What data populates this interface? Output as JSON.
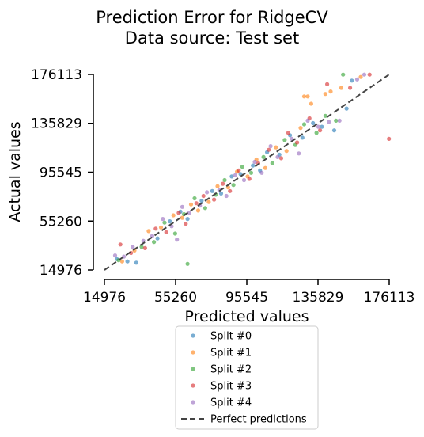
{
  "chart_data": {
    "type": "scatter",
    "title": "Prediction Error for RidgeCV",
    "subtitle": "Data source: Test set",
    "xlabel": "Predicted values",
    "ylabel": "Actual values",
    "xlim": [
      14976,
      176113
    ],
    "ylim": [
      14976,
      176113
    ],
    "xticks": [
      "14976",
      "55260",
      "95545",
      "135829",
      "176113"
    ],
    "yticks": [
      "14976",
      "55260",
      "95545",
      "135829",
      "176113"
    ],
    "tick_values": [
      14976,
      55260,
      95545,
      135829,
      176113
    ],
    "grid": false,
    "legend_position": "below",
    "reference_line": {
      "name": "Perfect predictions",
      "style": "dashed",
      "color": "#444444",
      "from": [
        14976,
        14976
      ],
      "to": [
        176113,
        176113
      ]
    },
    "series": [
      {
        "name": "Split #0",
        "color": "#1f77b4",
        "points": [
          [
            22000,
            24000
          ],
          [
            28000,
            22000
          ],
          [
            33000,
            21000
          ],
          [
            45000,
            41000
          ],
          [
            52000,
            55000
          ],
          [
            58000,
            63000
          ],
          [
            62000,
            57000
          ],
          [
            70000,
            72000
          ],
          [
            76000,
            80000
          ],
          [
            81000,
            78000
          ],
          [
            87000,
            92000
          ],
          [
            92000,
            94000
          ],
          [
            99000,
            101000
          ],
          [
            103000,
            97000
          ],
          [
            107000,
            112000
          ],
          [
            114000,
            110000
          ],
          [
            120000,
            126000
          ],
          [
            127000,
            124000
          ],
          [
            133000,
            136000
          ],
          [
            138000,
            133000
          ],
          [
            145000,
            130000
          ],
          [
            152000,
            148000
          ],
          [
            155000,
            171000
          ]
        ]
      },
      {
        "name": "Split #1",
        "color": "#ff7f0e",
        "points": [
          [
            25000,
            22000
          ],
          [
            32000,
            31000
          ],
          [
            40000,
            47000
          ],
          [
            47000,
            50000
          ],
          [
            54000,
            60000
          ],
          [
            59000,
            58000
          ],
          [
            64000,
            69000
          ],
          [
            68000,
            64000
          ],
          [
            74000,
            71000
          ],
          [
            79000,
            84000
          ],
          [
            85000,
            83000
          ],
          [
            90000,
            96000
          ],
          [
            96000,
            92000
          ],
          [
            101000,
            106000
          ],
          [
            106000,
            99000
          ],
          [
            112000,
            116000
          ],
          [
            118000,
            113000
          ],
          [
            126000,
            132000
          ],
          [
            128000,
            158000
          ],
          [
            130000,
            158000
          ],
          [
            132000,
            152000
          ],
          [
            140000,
            160000
          ],
          [
            143000,
            162000
          ],
          [
            149000,
            165000
          ],
          [
            160000,
            174000
          ]
        ]
      },
      {
        "name": "Split #2",
        "color": "#2ca02c",
        "points": [
          [
            23000,
            23000
          ],
          [
            36000,
            34000
          ],
          [
            43000,
            38000
          ],
          [
            49000,
            54000
          ],
          [
            55000,
            45000
          ],
          [
            60000,
            61000
          ],
          [
            62000,
            20000
          ],
          [
            66000,
            74000
          ],
          [
            72000,
            66000
          ],
          [
            78000,
            77000
          ],
          [
            83000,
            89000
          ],
          [
            88000,
            85000
          ],
          [
            93000,
            100000
          ],
          [
            98000,
            95000
          ],
          [
            105000,
            108000
          ],
          [
            110000,
            103000
          ],
          [
            117000,
            122000
          ],
          [
            123000,
            118000
          ],
          [
            128000,
            135000
          ],
          [
            135000,
            128000
          ],
          [
            140000,
            142000
          ],
          [
            146000,
            138000
          ],
          [
            150000,
            176000
          ]
        ]
      },
      {
        "name": "Split #3",
        "color": "#d62728",
        "points": [
          [
            24000,
            36000
          ],
          [
            30000,
            29000
          ],
          [
            38000,
            33000
          ],
          [
            44000,
            49000
          ],
          [
            50000,
            46000
          ],
          [
            57000,
            62000
          ],
          [
            61000,
            53000
          ],
          [
            67000,
            70000
          ],
          [
            71000,
            76000
          ],
          [
            77000,
            73000
          ],
          [
            82000,
            86000
          ],
          [
            86000,
            80000
          ],
          [
            91000,
            97000
          ],
          [
            97000,
            90000
          ],
          [
            102000,
            103000
          ],
          [
            108000,
            114000
          ],
          [
            115000,
            107000
          ],
          [
            119000,
            128000
          ],
          [
            124000,
            120000
          ],
          [
            131000,
            140000
          ],
          [
            137000,
            130000
          ],
          [
            141000,
            168000
          ],
          [
            154000,
            165000
          ],
          [
            165000,
            176000
          ],
          [
            176000,
            123000
          ]
        ]
      },
      {
        "name": "Split #4",
        "color": "#9467bd",
        "points": [
          [
            21000,
            27000
          ],
          [
            26000,
            26000
          ],
          [
            31000,
            34000
          ],
          [
            37000,
            39000
          ],
          [
            42000,
            43000
          ],
          [
            48000,
            57000
          ],
          [
            53000,
            51000
          ],
          [
            56000,
            40000
          ],
          [
            59000,
            67000
          ],
          [
            63000,
            62000
          ],
          [
            69000,
            68000
          ],
          [
            73000,
            79000
          ],
          [
            80000,
            81000
          ],
          [
            84000,
            76000
          ],
          [
            89000,
            93000
          ],
          [
            94000,
            89000
          ],
          [
            100000,
            104000
          ],
          [
            104000,
            95000
          ],
          [
            109000,
            117000
          ],
          [
            113000,
            108000
          ],
          [
            121000,
            123000
          ],
          [
            125000,
            111000
          ],
          [
            130000,
            138000
          ],
          [
            136000,
            133000
          ],
          [
            142000,
            137000
          ],
          [
            148000,
            138000
          ],
          [
            158000,
            172000
          ],
          [
            162000,
            176000
          ]
        ]
      }
    ]
  }
}
